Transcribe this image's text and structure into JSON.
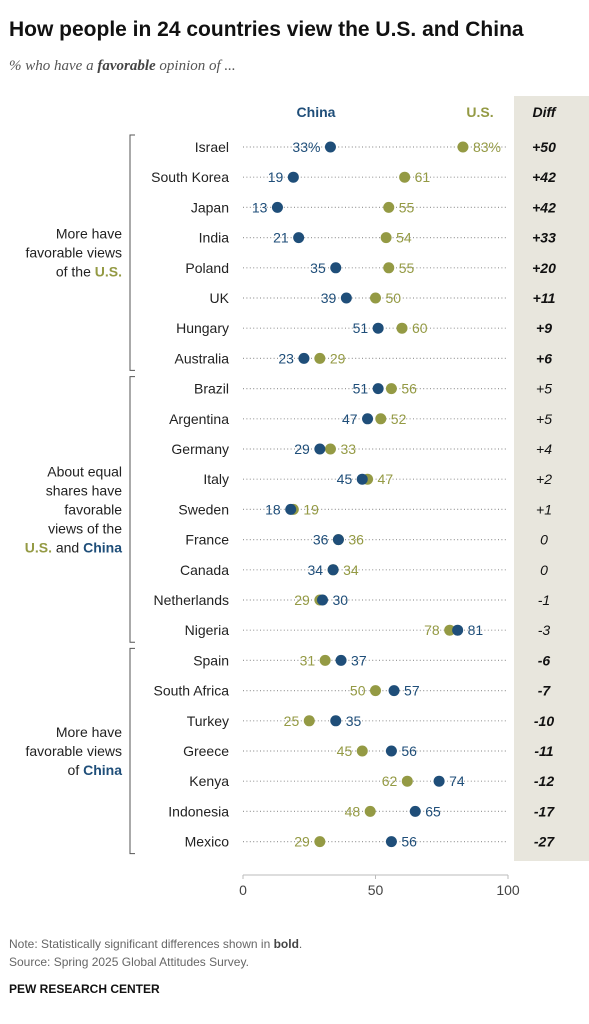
{
  "title": "How people in 24 countries view the U.S. and China",
  "subtitle": {
    "prefix": "% who have a ",
    "bold": "favorable",
    "suffix": " opinion of ..."
  },
  "colors": {
    "china": "#1f4e79",
    "us": "#949a44",
    "diff_bg": "#e8e6dd",
    "dots_line": "#9a9a9a",
    "bracket": "#555555"
  },
  "groups": [
    {
      "lines": [
        [
          {
            "text": "More have",
            "color": "plain"
          }
        ],
        [
          {
            "text": "favorable views",
            "color": "plain"
          }
        ],
        [
          {
            "text": "of the ",
            "color": "plain"
          },
          {
            "text": "U.S.",
            "color": "us"
          }
        ]
      ],
      "first": 0,
      "last": 7
    },
    {
      "lines": [
        [
          {
            "text": "About equal",
            "color": "plain"
          }
        ],
        [
          {
            "text": "shares have",
            "color": "plain"
          }
        ],
        [
          {
            "text": "favorable",
            "color": "plain"
          }
        ],
        [
          {
            "text": "views of the",
            "color": "plain"
          }
        ],
        [
          {
            "text": "U.S.",
            "color": "us"
          },
          {
            "text": " and ",
            "color": "plain"
          },
          {
            "text": "China",
            "color": "china"
          }
        ]
      ],
      "first": 8,
      "last": 16
    },
    {
      "lines": [
        [
          {
            "text": "More have",
            "color": "plain"
          }
        ],
        [
          {
            "text": "favorable views",
            "color": "plain"
          }
        ],
        [
          {
            "text": "of ",
            "color": "plain"
          },
          {
            "text": "China",
            "color": "china"
          }
        ]
      ],
      "first": 17,
      "last": 23
    }
  ],
  "chart_data": {
    "type": "dot",
    "series": [
      {
        "name": "China",
        "header": "China",
        "color": "#1f4e79",
        "values": [
          33,
          19,
          13,
          21,
          35,
          39,
          51,
          23,
          51,
          47,
          29,
          45,
          18,
          36,
          34,
          30,
          81,
          37,
          57,
          35,
          56,
          74,
          65,
          56
        ]
      },
      {
        "name": "U.S.",
        "header": "U.S.",
        "color": "#949a44",
        "values": [
          83,
          61,
          55,
          54,
          55,
          50,
          60,
          29,
          56,
          52,
          33,
          47,
          19,
          36,
          34,
          29,
          78,
          31,
          50,
          25,
          45,
          62,
          48,
          29
        ]
      }
    ],
    "categories": [
      "Israel",
      "South Korea",
      "Japan",
      "India",
      "Poland",
      "UK",
      "Hungary",
      "Australia",
      "Brazil",
      "Argentina",
      "Germany",
      "Italy",
      "Sweden",
      "France",
      "Canada",
      "Netherlands",
      "Nigeria",
      "Spain",
      "South Africa",
      "Turkey",
      "Greece",
      "Kenya",
      "Indonesia",
      "Mexico"
    ],
    "first_value_suffix": "%",
    "diff": {
      "header": "Diff",
      "values": [
        "+50",
        "+42",
        "+42",
        "+33",
        "+20",
        "+11",
        "+9",
        "+6",
        "+5",
        "+5",
        "+4",
        "+2",
        "+1",
        "0",
        "0",
        "-1",
        "-3",
        "-6",
        "-7",
        "-10",
        "-11",
        "-12",
        "-17",
        "-27"
      ],
      "significant": [
        true,
        true,
        true,
        true,
        true,
        true,
        true,
        true,
        false,
        false,
        false,
        false,
        false,
        false,
        false,
        false,
        false,
        true,
        true,
        true,
        true,
        true,
        true,
        true
      ]
    },
    "xlim": [
      0,
      100
    ],
    "xticks": [
      "0",
      "50",
      "100"
    ]
  },
  "note": {
    "prefix": "Note: Statistically significant differences shown in ",
    "bold": "bold",
    "suffix": "."
  },
  "source": "Source: Spring 2025 Global Attitudes Survey.",
  "org": "PEW RESEARCH CENTER"
}
